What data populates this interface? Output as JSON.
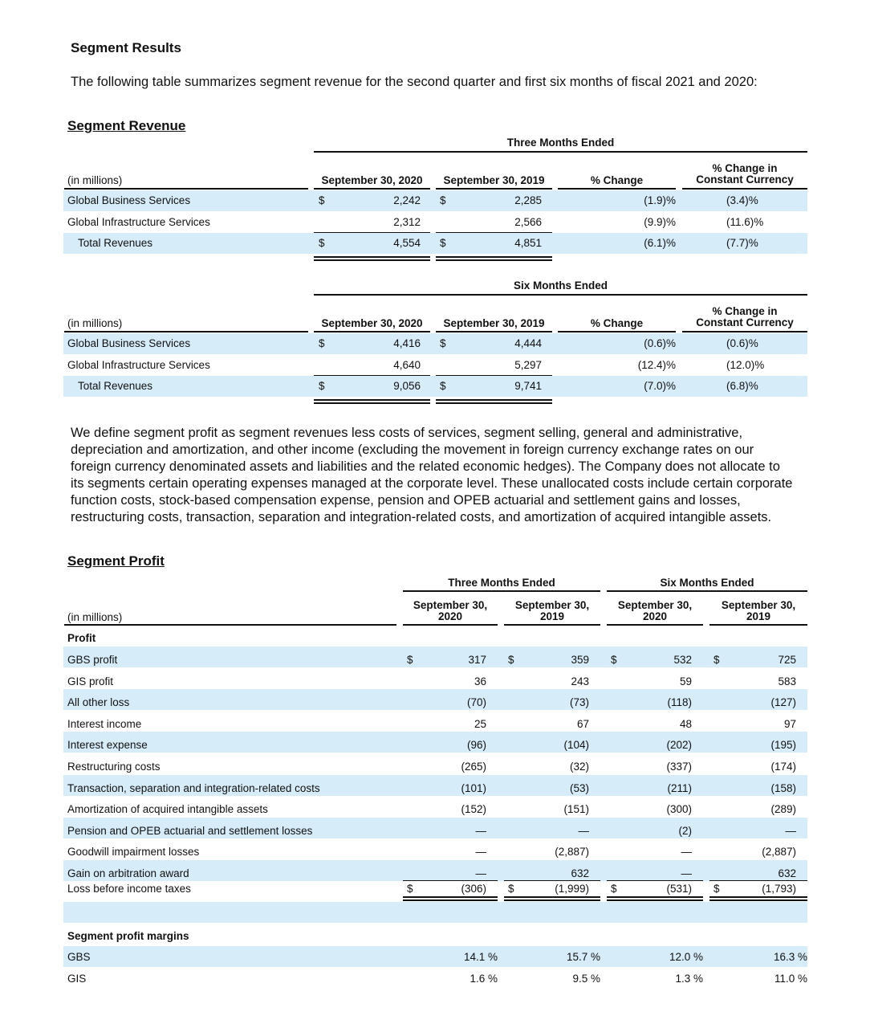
{
  "segment_results": {
    "title": "Segment Results",
    "intro": "The following table summarizes segment revenue for the second quarter and first six months of fiscal 2021 and 2020:"
  },
  "segment_revenue": {
    "title": "Segment Revenue",
    "unit_label": "(in millions)",
    "col_headers": [
      "September 30, 2020",
      "September 30, 2019",
      "% Change",
      "% Change in Constant Currency"
    ],
    "three_months": {
      "period_label": "Three Months Ended",
      "rows": [
        {
          "label": "Global Business Services",
          "cur1": "$",
          "v2020": "2,242",
          "cur2": "$",
          "v2019": "2,285",
          "chg": "(1.9)%",
          "cc": "(3.4)%"
        },
        {
          "label": "Global Infrastructure Services",
          "cur1": "",
          "v2020": "2,312",
          "cur2": "",
          "v2019": "2,566",
          "chg": "(9.9)%",
          "cc": "(11.6)%"
        },
        {
          "label": "Total Revenues",
          "cur1": "$",
          "v2020": "4,554",
          "cur2": "$",
          "v2019": "4,851",
          "chg": "(6.1)%",
          "cc": "(7.7)%"
        }
      ]
    },
    "six_months": {
      "period_label": "Six Months Ended",
      "rows": [
        {
          "label": "Global Business Services",
          "cur1": "$",
          "v2020": "4,416",
          "cur2": "$",
          "v2019": "4,444",
          "chg": "(0.6)%",
          "cc": "(0.6)%"
        },
        {
          "label": "Global Infrastructure Services",
          "cur1": "",
          "v2020": "4,640",
          "cur2": "",
          "v2019": "5,297",
          "chg": "(12.4)%",
          "cc": "(12.0)%"
        },
        {
          "label": "Total Revenues",
          "cur1": "$",
          "v2020": "9,056",
          "cur2": "$",
          "v2019": "9,741",
          "chg": "(7.0)%",
          "cc": "(6.8)%"
        }
      ]
    }
  },
  "definition_text": "We define segment profit as segment revenues less costs of services, segment selling, general and administrative, depreciation and amortization, and other income (excluding the movement in foreign currency exchange rates on our foreign currency denominated assets and liabilities and the related economic hedges). The Company does not allocate to its segments certain operating expenses managed at the corporate level. These unallocated costs include certain corporate function costs, stock-based compensation expense, pension and OPEB actuarial and settlement gains and losses, restructuring costs, transaction, separation and integration-related costs, and amortization of acquired intangible assets.",
  "segment_profit": {
    "title": "Segment Profit",
    "unit_label": "(in millions)",
    "group_headers": [
      "Three Months Ended",
      "Six Months Ended"
    ],
    "col_headers": [
      "September 30, 2020",
      "September 30, 2019",
      "September 30, 2020",
      "September 30, 2019"
    ],
    "profit_label": "Profit",
    "rows": [
      {
        "label": "GBS profit",
        "cur": "$",
        "values": [
          "317",
          "359",
          "532",
          "725"
        ]
      },
      {
        "label": "GIS profit",
        "cur": "",
        "values": [
          "36",
          "243",
          "59",
          "583"
        ]
      },
      {
        "label": "All other loss",
        "cur": "",
        "values": [
          "(70)",
          "(73)",
          "(118)",
          "(127)"
        ]
      },
      {
        "label": "Interest income",
        "cur": "",
        "values": [
          "25",
          "67",
          "48",
          "97"
        ]
      },
      {
        "label": "Interest expense",
        "cur": "",
        "values": [
          "(96)",
          "(104)",
          "(202)",
          "(195)"
        ]
      },
      {
        "label": "Restructuring costs",
        "cur": "",
        "values": [
          "(265)",
          "(32)",
          "(337)",
          "(174)"
        ]
      },
      {
        "label": "Transaction, separation and integration-related costs",
        "cur": "",
        "values": [
          "(101)",
          "(53)",
          "(211)",
          "(158)"
        ]
      },
      {
        "label": "Amortization of acquired intangible assets",
        "cur": "",
        "values": [
          "(152)",
          "(151)",
          "(300)",
          "(289)"
        ]
      },
      {
        "label": "Pension and OPEB actuarial and settlement losses",
        "cur": "",
        "values": [
          "—",
          "—",
          "(2)",
          "—"
        ]
      },
      {
        "label": "Goodwill impairment losses",
        "cur": "",
        "values": [
          "—",
          "(2,887)",
          "—",
          "(2,887)"
        ]
      },
      {
        "label": "Gain on arbitration award",
        "cur": "",
        "values": [
          "—",
          "632",
          "—",
          "632"
        ]
      },
      {
        "label": "Loss before income taxes",
        "cur": "$",
        "values": [
          "(306)",
          "(1,999)",
          "(531)",
          "(1,793)"
        ]
      }
    ],
    "margins_label": "Segment profit margins",
    "margins": [
      {
        "label": "GBS",
        "values": [
          "14.1 %",
          "15.7 %",
          "12.0 %",
          "16.3 %"
        ]
      },
      {
        "label": "GIS",
        "values": [
          "1.6 %",
          "9.5 %",
          "1.3 %",
          "11.0 %"
        ]
      }
    ]
  }
}
